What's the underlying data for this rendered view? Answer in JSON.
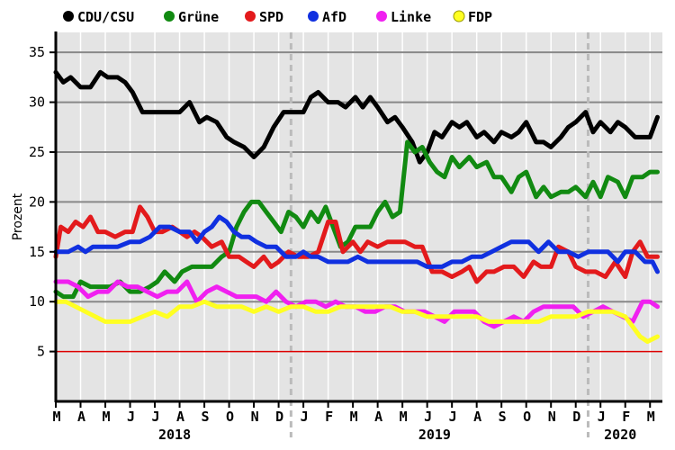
{
  "chart_data": {
    "type": "line",
    "ylabel": "Prozent",
    "ylim": [
      0,
      37
    ],
    "yticks": [
      5,
      10,
      15,
      20,
      25,
      30,
      35
    ],
    "reference_line": 5,
    "x_range": [
      0,
      24.5
    ],
    "month_labels": [
      {
        "x": 0,
        "label": "M"
      },
      {
        "x": 1,
        "label": "A"
      },
      {
        "x": 2,
        "label": "M"
      },
      {
        "x": 3,
        "label": "J"
      },
      {
        "x": 4,
        "label": "J"
      },
      {
        "x": 5,
        "label": "A"
      },
      {
        "x": 6,
        "label": "S"
      },
      {
        "x": 7,
        "label": "O"
      },
      {
        "x": 8,
        "label": "N"
      },
      {
        "x": 9,
        "label": "D"
      },
      {
        "x": 10,
        "label": "J"
      },
      {
        "x": 11,
        "label": "F"
      },
      {
        "x": 12,
        "label": "M"
      },
      {
        "x": 13,
        "label": "A"
      },
      {
        "x": 14,
        "label": "M"
      },
      {
        "x": 15,
        "label": "J"
      },
      {
        "x": 16,
        "label": "J"
      },
      {
        "x": 17,
        "label": "A"
      },
      {
        "x": 18,
        "label": "S"
      },
      {
        "x": 19,
        "label": "O"
      },
      {
        "x": 20,
        "label": "N"
      },
      {
        "x": 21,
        "label": "D"
      },
      {
        "x": 22,
        "label": "J"
      },
      {
        "x": 23,
        "label": "F"
      },
      {
        "x": 24,
        "label": "M"
      }
    ],
    "year_labels": [
      {
        "x": 4.8,
        "label": "2018"
      },
      {
        "x": 15.3,
        "label": "2019"
      },
      {
        "x": 22.8,
        "label": "2020"
      }
    ],
    "year_dividers": [
      9.5,
      21.5
    ],
    "series": [
      {
        "name": "CDU/CSU",
        "color": "#000000",
        "x": [
          0,
          0.3,
          0.6,
          1.0,
          1.4,
          1.8,
          2.1,
          2.5,
          2.8,
          3.1,
          3.5,
          3.9,
          4.2,
          4.6,
          5.0,
          5.4,
          5.8,
          6.1,
          6.5,
          6.9,
          7.2,
          7.6,
          8.0,
          8.4,
          8.8,
          9.2,
          9.6,
          10.0,
          10.3,
          10.6,
          11.0,
          11.4,
          11.7,
          12.1,
          12.4,
          12.7,
          13.0,
          13.4,
          13.7,
          14.0,
          14.4,
          14.7,
          15.0,
          15.3,
          15.6,
          16.0,
          16.3,
          16.6,
          17.0,
          17.3,
          17.7,
          18.0,
          18.4,
          18.7,
          19.0,
          19.4,
          19.7,
          20.0,
          20.4,
          20.7,
          21.0,
          21.4,
          21.7,
          22.0,
          22.4,
          22.7,
          23.0,
          23.4,
          23.7,
          24.0,
          24.3
        ],
        "values": [
          33,
          32,
          32.5,
          31.5,
          31.5,
          33,
          32.5,
          32.5,
          32,
          31,
          29,
          29,
          29,
          29,
          29,
          30,
          28,
          28.5,
          28,
          26.5,
          26,
          25.5,
          24.5,
          25.5,
          27.5,
          29,
          29,
          29,
          30.5,
          31,
          30,
          30,
          29.5,
          30.5,
          29.5,
          30.5,
          29.5,
          28,
          28.5,
          27.5,
          26,
          24,
          25,
          27,
          26.5,
          28,
          27.5,
          28,
          26.5,
          27,
          26,
          27,
          26.5,
          27,
          28,
          26,
          26,
          25.5,
          26.5,
          27.5,
          28,
          29,
          27,
          28,
          27,
          28,
          27.5,
          26.5,
          26.5,
          26.5,
          28.5
        ]
      },
      {
        "name": "Grüne",
        "color": "#118a11",
        "x": [
          0,
          0.3,
          0.7,
          1.0,
          1.4,
          1.8,
          2.2,
          2.6,
          3.0,
          3.4,
          3.8,
          4.1,
          4.4,
          4.8,
          5.1,
          5.5,
          5.9,
          6.3,
          6.7,
          7.0,
          7.3,
          7.6,
          7.9,
          8.2,
          8.5,
          8.8,
          9.1,
          9.4,
          9.7,
          10.0,
          10.3,
          10.6,
          10.9,
          11.2,
          11.5,
          11.8,
          12.1,
          12.4,
          12.7,
          13.0,
          13.3,
          13.6,
          13.9,
          14.2,
          14.5,
          14.8,
          15.1,
          15.4,
          15.7,
          16.0,
          16.3,
          16.7,
          17.0,
          17.4,
          17.7,
          18.0,
          18.4,
          18.7,
          19.0,
          19.4,
          19.7,
          20.0,
          20.4,
          20.7,
          21.0,
          21.4,
          21.7,
          22.0,
          22.3,
          22.7,
          23.0,
          23.3,
          23.7,
          24.0,
          24.3
        ],
        "values": [
          11,
          10.5,
          10.5,
          12,
          11.5,
          11.5,
          11.5,
          12,
          11,
          11,
          11.5,
          12,
          13,
          12,
          13,
          13.5,
          13.5,
          13.5,
          14.5,
          15,
          17.5,
          19,
          20,
          20,
          19,
          18,
          17,
          19,
          18.5,
          17.5,
          19,
          18,
          19.5,
          17.5,
          15.5,
          16,
          17.5,
          17.5,
          17.5,
          19,
          20,
          18.5,
          19,
          26,
          25,
          25.5,
          24,
          23,
          22.5,
          24.5,
          23.5,
          24.5,
          23.5,
          24,
          22.5,
          22.5,
          21,
          22.5,
          23,
          20.5,
          21.5,
          20.5,
          21,
          21,
          21.5,
          20.5,
          22,
          20.5,
          22.5,
          22,
          20.5,
          22.5,
          22.5,
          23,
          23
        ]
      },
      {
        "name": "SPD",
        "color": "#e31a1c",
        "x": [
          0,
          0.2,
          0.5,
          0.8,
          1.1,
          1.4,
          1.7,
          2.0,
          2.4,
          2.8,
          3.1,
          3.4,
          3.7,
          4.0,
          4.3,
          4.7,
          5.0,
          5.3,
          5.6,
          5.9,
          6.3,
          6.7,
          7.0,
          7.4,
          7.7,
          8.0,
          8.4,
          8.7,
          9.0,
          9.4,
          9.8,
          10.2,
          10.6,
          11.0,
          11.3,
          11.6,
          12.0,
          12.3,
          12.6,
          13.0,
          13.4,
          13.8,
          14.1,
          14.5,
          14.8,
          15.2,
          15.6,
          16.0,
          16.4,
          16.7,
          17.0,
          17.4,
          17.7,
          18.1,
          18.5,
          18.9,
          19.3,
          19.6,
          20.0,
          20.3,
          20.7,
          21.0,
          21.4,
          21.8,
          22.2,
          22.6,
          23.0,
          23.3,
          23.6,
          23.9,
          24.3
        ],
        "values": [
          14.5,
          17.5,
          17,
          18,
          17.5,
          18.5,
          17,
          17,
          16.5,
          17,
          17,
          19.5,
          18.5,
          17,
          17,
          17.5,
          17,
          16.5,
          17,
          16.5,
          15.5,
          16,
          14.5,
          14.5,
          14,
          13.5,
          14.5,
          13.5,
          14,
          15,
          14.5,
          14.5,
          15,
          18,
          18,
          15,
          16,
          15,
          16,
          15.5,
          16,
          16,
          16,
          15.5,
          15.5,
          13,
          13,
          12.5,
          13,
          13.5,
          12,
          13,
          13,
          13.5,
          13.5,
          12.5,
          14,
          13.5,
          13.5,
          15.5,
          15,
          13.5,
          13,
          13,
          12.5,
          14,
          12.5,
          15,
          16,
          14.5,
          14.5
        ]
      },
      {
        "name": "AfD",
        "color": "#1030e0",
        "x": [
          0,
          0.5,
          0.9,
          1.2,
          1.5,
          2.0,
          2.5,
          3.0,
          3.4,
          3.8,
          4.2,
          4.6,
          5.0,
          5.4,
          5.7,
          6.0,
          6.3,
          6.6,
          6.9,
          7.2,
          7.5,
          7.8,
          8.1,
          8.5,
          8.9,
          9.3,
          9.7,
          10.0,
          10.3,
          10.6,
          11.0,
          11.4,
          11.8,
          12.2,
          12.6,
          13.0,
          13.4,
          13.8,
          14.2,
          14.6,
          15.0,
          15.3,
          15.6,
          16.0,
          16.4,
          16.8,
          17.2,
          17.6,
          18.0,
          18.4,
          18.8,
          19.1,
          19.5,
          19.9,
          20.3,
          20.7,
          21.1,
          21.5,
          21.9,
          22.3,
          22.7,
          23.0,
          23.4,
          23.8,
          24.1,
          24.3
        ],
        "values": [
          15,
          15,
          15.5,
          15,
          15.5,
          15.5,
          15.5,
          16,
          16,
          16.5,
          17.5,
          17.5,
          17,
          17,
          16,
          17,
          17.5,
          18.5,
          18,
          17,
          16.5,
          16.5,
          16,
          15.5,
          15.5,
          14.5,
          14.5,
          15,
          14.5,
          14.5,
          14,
          14,
          14,
          14.5,
          14,
          14,
          14,
          14,
          14,
          14,
          13.5,
          13.5,
          13.5,
          14,
          14,
          14.5,
          14.5,
          15,
          15.5,
          16,
          16,
          16,
          15,
          16,
          15,
          15,
          14.5,
          15,
          15,
          15,
          14,
          15,
          15,
          14,
          14,
          13
        ]
      },
      {
        "name": "Linke",
        "color": "#f020f0",
        "x": [
          0,
          0.5,
          0.9,
          1.3,
          1.7,
          2.1,
          2.5,
          2.9,
          3.3,
          3.7,
          4.1,
          4.5,
          4.9,
          5.3,
          5.7,
          6.1,
          6.5,
          6.9,
          7.3,
          7.7,
          8.1,
          8.5,
          8.9,
          9.3,
          9.7,
          10.1,
          10.5,
          10.9,
          11.3,
          11.7,
          12.1,
          12.5,
          12.9,
          13.3,
          13.7,
          14.1,
          14.5,
          14.9,
          15.3,
          15.7,
          16.1,
          16.5,
          16.9,
          17.3,
          17.7,
          18.1,
          18.5,
          18.9,
          19.3,
          19.7,
          20.1,
          20.5,
          20.9,
          21.3,
          21.7,
          22.1,
          22.5,
          22.9,
          23.3,
          23.7,
          24.0,
          24.3
        ],
        "values": [
          12,
          12,
          11.5,
          10.5,
          11,
          11,
          12,
          11.5,
          11.5,
          11,
          10.5,
          11,
          11,
          12,
          10,
          11,
          11.5,
          11,
          10.5,
          10.5,
          10.5,
          10,
          11,
          10,
          9.5,
          10,
          10,
          9.5,
          10,
          9.5,
          9.5,
          9,
          9,
          9.5,
          9.5,
          9,
          9,
          9,
          8.5,
          8,
          9,
          9,
          9,
          8,
          7.5,
          8,
          8.5,
          8,
          9,
          9.5,
          9.5,
          9.5,
          9.5,
          8.5,
          9,
          9.5,
          9,
          8.5,
          8,
          10,
          10,
          9.5
        ]
      },
      {
        "name": "FDP",
        "color": "#ffff22",
        "x": [
          0,
          0.4,
          0.8,
          1.2,
          1.6,
          2.0,
          2.5,
          3.0,
          3.5,
          4.0,
          4.5,
          5.0,
          5.5,
          6.0,
          6.5,
          7.0,
          7.5,
          8.0,
          8.5,
          9.0,
          9.5,
          10.0,
          10.5,
          11.0,
          11.5,
          12.0,
          12.5,
          13.0,
          13.5,
          14.0,
          14.5,
          15.0,
          15.5,
          16.0,
          16.5,
          17.0,
          17.5,
          18.0,
          18.5,
          19.0,
          19.5,
          20.0,
          20.5,
          21.0,
          21.5,
          22.0,
          22.5,
          23.0,
          23.3,
          23.6,
          23.9,
          24.3
        ],
        "values": [
          10,
          10,
          9.5,
          9,
          8.5,
          8,
          8,
          8,
          8.5,
          9,
          8.5,
          9.5,
          9.5,
          10,
          9.5,
          9.5,
          9.5,
          9,
          9.5,
          9,
          9.5,
          9.5,
          9,
          9,
          9.5,
          9.5,
          9.5,
          9.5,
          9.5,
          9,
          9,
          8.5,
          8.5,
          8.5,
          8.5,
          8.5,
          8,
          8,
          8,
          8,
          8,
          8.5,
          8.5,
          8.5,
          9,
          9,
          9,
          8.5,
          7.5,
          6.5,
          6,
          6.5
        ]
      }
    ]
  }
}
